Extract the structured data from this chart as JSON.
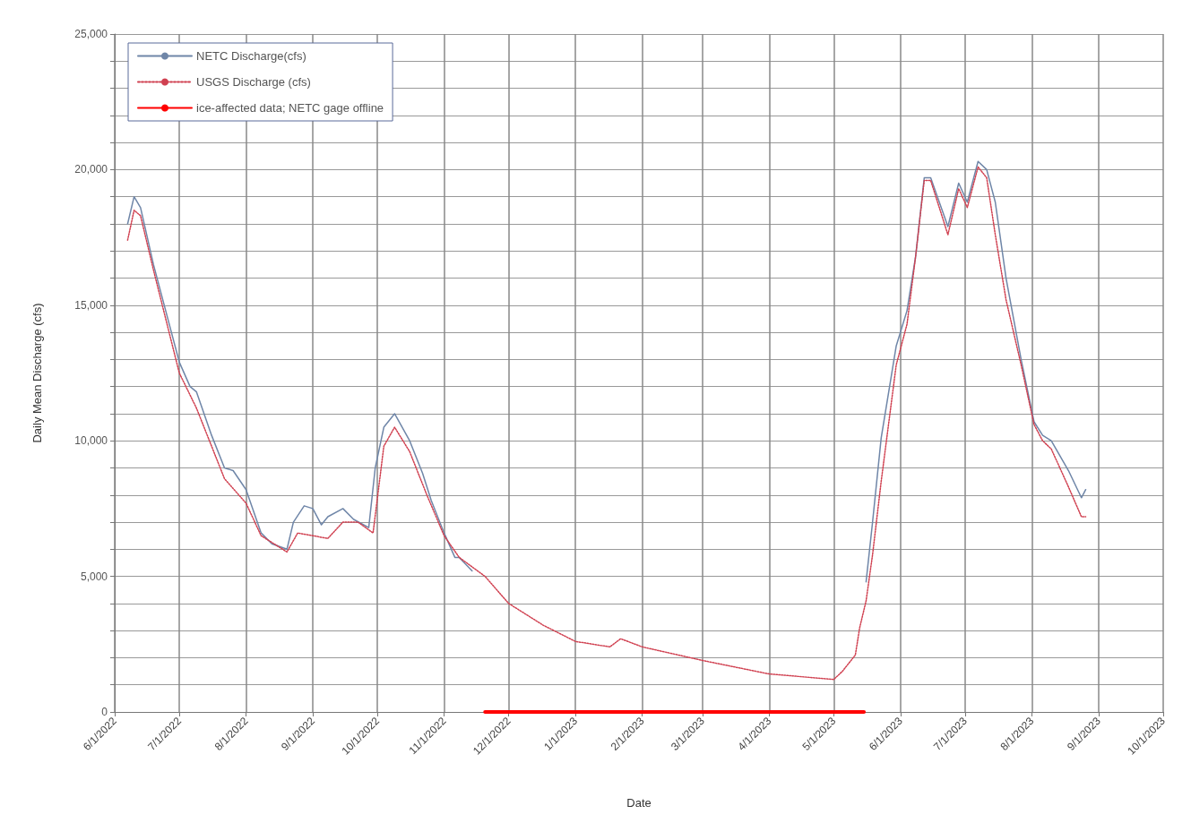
{
  "chart_data": {
    "type": "line",
    "xlabel": "Date",
    "ylabel": "Daily Mean Discharge (cfs)",
    "xlim": [
      "2022-06-01",
      "2023-10-01"
    ],
    "xticks": [
      {
        "value": "2022-06-01",
        "label": "6/1/2022"
      },
      {
        "value": "2022-07-01",
        "label": "7/1/2022"
      },
      {
        "value": "2022-08-01",
        "label": "8/1/2022"
      },
      {
        "value": "2022-09-01",
        "label": "9/1/2022"
      },
      {
        "value": "2022-10-01",
        "label": "10/1/2022"
      },
      {
        "value": "2022-11-01",
        "label": "11/1/2022"
      },
      {
        "value": "2022-12-01",
        "label": "12/1/2022"
      },
      {
        "value": "2023-01-01",
        "label": "1/1/2023"
      },
      {
        "value": "2023-02-01",
        "label": "2/1/2023"
      },
      {
        "value": "2023-03-01",
        "label": "3/1/2023"
      },
      {
        "value": "2023-04-01",
        "label": "4/1/2023"
      },
      {
        "value": "2023-05-01",
        "label": "5/1/2023"
      },
      {
        "value": "2023-06-01",
        "label": "6/1/2023"
      },
      {
        "value": "2023-07-01",
        "label": "7/1/2023"
      },
      {
        "value": "2023-08-01",
        "label": "8/1/2023"
      },
      {
        "value": "2023-09-01",
        "label": "9/1/2023"
      },
      {
        "value": "2023-10-01",
        "label": "10/1/2023"
      }
    ],
    "ylim": [
      0,
      25000
    ],
    "yticks": [
      {
        "value": 0,
        "label": "0"
      },
      {
        "value": 1000,
        "label": null
      },
      {
        "value": 2000,
        "label": null
      },
      {
        "value": 3000,
        "label": null
      },
      {
        "value": 4000,
        "label": null
      },
      {
        "value": 5000,
        "label": "5,000"
      },
      {
        "value": 6000,
        "label": null
      },
      {
        "value": 7000,
        "label": null
      },
      {
        "value": 8000,
        "label": null
      },
      {
        "value": 9000,
        "label": null
      },
      {
        "value": 10000,
        "label": "10,000"
      },
      {
        "value": 11000,
        "label": null
      },
      {
        "value": 12000,
        "label": null
      },
      {
        "value": 13000,
        "label": null
      },
      {
        "value": 14000,
        "label": null
      },
      {
        "value": 15000,
        "label": "15,000"
      },
      {
        "value": 16000,
        "label": null
      },
      {
        "value": 17000,
        "label": null
      },
      {
        "value": 18000,
        "label": null
      },
      {
        "value": 19000,
        "label": null
      },
      {
        "value": 20000,
        "label": "20,000"
      },
      {
        "value": 21000,
        "label": null
      },
      {
        "value": 22000,
        "label": null
      },
      {
        "value": 23000,
        "label": null
      },
      {
        "value": 24000,
        "label": null
      },
      {
        "value": 25000,
        "label": "25,000"
      }
    ],
    "grid": true,
    "legend": "top left",
    "marker": "none",
    "series": [
      {
        "name": "NETC Discharge(cfs)",
        "color": "#6f86a8",
        "line_style": "solid",
        "x": [
          "2022-06-07",
          "2022-06-10",
          "2022-06-13",
          "2022-06-19",
          "2022-07-01",
          "2022-07-06",
          "2022-07-09",
          "2022-07-16",
          "2022-07-22",
          "2022-07-26",
          "2022-08-01",
          "2022-08-08",
          "2022-08-13",
          "2022-08-20",
          "2022-08-23",
          "2022-08-28",
          "2022-09-01",
          "2022-09-05",
          "2022-09-08",
          "2022-09-15",
          "2022-09-20",
          "2022-09-27",
          "2022-09-30",
          "2022-10-04",
          "2022-10-09",
          "2022-10-16",
          "2022-10-22",
          "2022-10-26",
          "2022-11-01",
          "2022-11-06",
          "2022-11-08",
          "2022-11-14",
          null,
          "2023-05-16",
          "2023-05-19",
          "2023-05-23",
          "2023-05-30",
          "2023-06-04",
          "2023-06-08",
          "2023-06-12",
          "2023-06-15",
          "2023-06-23",
          "2023-06-28",
          "2023-07-02",
          "2023-07-07",
          "2023-07-11",
          "2023-07-15",
          "2023-07-20",
          "2023-07-27",
          "2023-08-02",
          "2023-08-06",
          "2023-08-10",
          "2023-08-18",
          "2023-08-24",
          "2023-08-26"
        ],
        "values": [
          18000,
          19000,
          18600,
          16500,
          12900,
          12000,
          11800,
          10200,
          9000,
          8900,
          8200,
          6600,
          6200,
          6000,
          7000,
          7600,
          7500,
          6900,
          7200,
          7500,
          7100,
          6800,
          9000,
          10500,
          11000,
          10000,
          8800,
          7800,
          6600,
          5700,
          5700,
          5200,
          null,
          4800,
          7000,
          10100,
          13500,
          14800,
          16800,
          19700,
          19700,
          17900,
          19500,
          18800,
          20300,
          20000,
          18800,
          16000,
          13000,
          10700,
          10200,
          10000,
          8900,
          7900,
          8200
        ]
      },
      {
        "name": "USGS Discharge (cfs)",
        "color": "#d04050",
        "line_style": "dotted",
        "x": [
          "2022-06-07",
          "2022-06-10",
          "2022-06-13",
          "2022-06-19",
          "2022-07-01",
          "2022-07-09",
          "2022-07-22",
          "2022-08-01",
          "2022-08-08",
          "2022-08-20",
          "2022-08-25",
          "2022-09-01",
          "2022-09-08",
          "2022-09-15",
          "2022-09-22",
          "2022-09-29",
          "2022-10-04",
          "2022-10-09",
          "2022-10-16",
          "2022-10-24",
          "2022-11-01",
          "2022-11-08",
          "2022-11-20",
          "2022-12-01",
          "2022-12-17",
          "2023-01-01",
          "2023-01-17",
          "2023-01-22",
          "2023-02-01",
          "2023-03-01",
          "2023-04-01",
          "2023-05-01",
          "2023-05-05",
          "2023-05-11",
          "2023-05-13",
          "2023-05-16",
          "2023-05-19",
          "2023-05-23",
          "2023-05-30",
          "2023-06-04",
          "2023-06-08",
          "2023-06-12",
          "2023-06-15",
          "2023-06-23",
          "2023-06-28",
          "2023-07-02",
          "2023-07-07",
          "2023-07-11",
          "2023-07-15",
          "2023-07-20",
          "2023-07-27",
          "2023-08-02",
          "2023-08-06",
          "2023-08-10",
          "2023-08-18",
          "2023-08-24",
          "2023-08-26"
        ],
        "values": [
          17400,
          18500,
          18300,
          16300,
          12500,
          11200,
          8600,
          7700,
          6500,
          5900,
          6600,
          6500,
          6400,
          7000,
          7000,
          6600,
          9800,
          10500,
          9600,
          8000,
          6500,
          5700,
          5000,
          4000,
          3200,
          2600,
          2400,
          2700,
          2400,
          1900,
          1400,
          1200,
          1500,
          2100,
          3100,
          4100,
          5800,
          8500,
          12800,
          14300,
          16800,
          19600,
          19600,
          17600,
          19300,
          18600,
          20100,
          19700,
          17600,
          15200,
          12800,
          10600,
          10000,
          9700,
          8300,
          7200,
          7200
        ]
      },
      {
        "name": "ice-affected data; NETC gage offline",
        "color": "#ff0000",
        "line_style": "solid",
        "x": [
          "2022-11-20",
          "2023-05-15"
        ],
        "values": [
          0,
          0
        ]
      }
    ]
  }
}
